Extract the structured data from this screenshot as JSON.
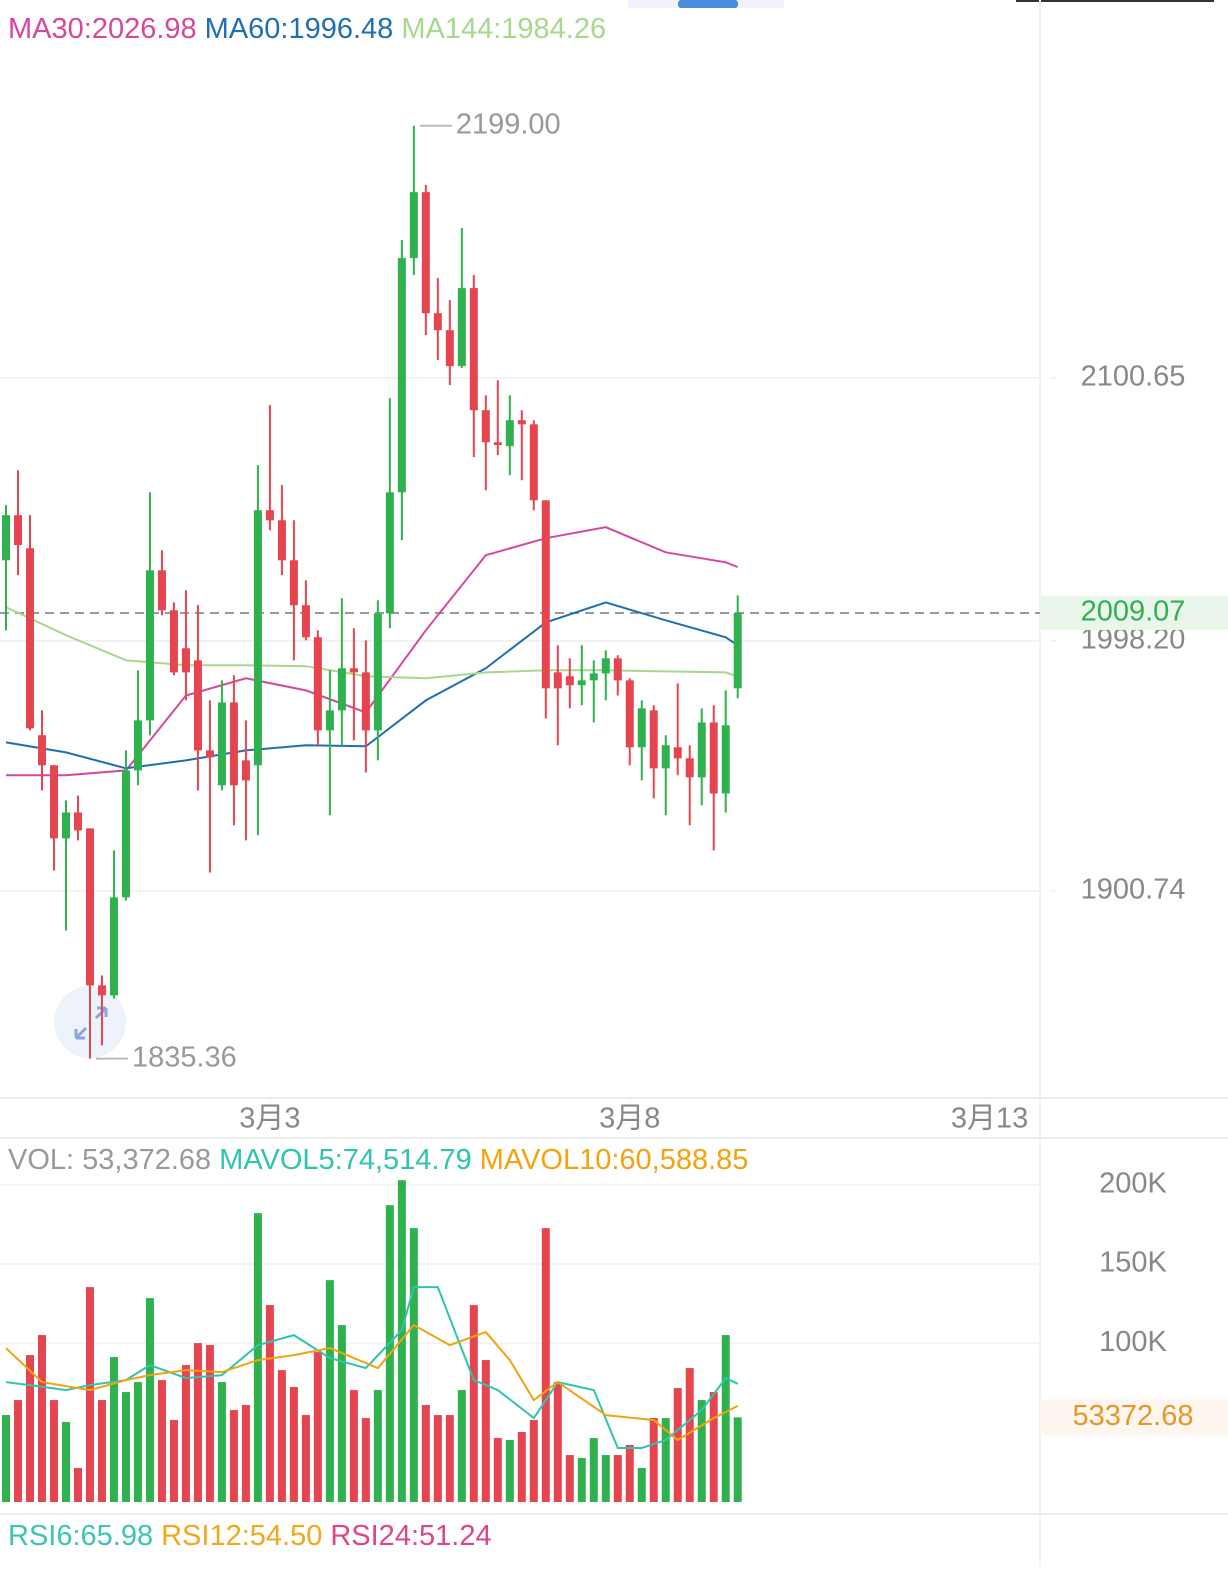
{
  "chart_data": [
    {
      "type": "candlestick",
      "up_color": "#2fb14e",
      "down_color": "#e5454f",
      "open": [
        2029.6,
        2047.2,
        2034.3,
        1961.4,
        1949.7,
        1921.2,
        1931.3,
        1925.1,
        1863.9,
        1860.0,
        1898.2,
        1947.7,
        1967.2,
        2025.7,
        2010.1,
        1995.3,
        1990.6,
        1955.5,
        1941.9,
        1974.2,
        1951.6,
        1949.7,
        2049.1,
        2045.2,
        2029.6,
        2012.1,
        1999.6,
        1963.3,
        1971.1,
        1987.5,
        1985.9,
        1963.3,
        2008.9,
        2056.1,
        2147.4,
        2173.1,
        2125.9,
        2119.3,
        2105.3,
        2135.7,
        2088.1,
        2075.6,
        2074.1,
        2084.2,
        2082.6,
        2053.0,
        1985.9,
        1984.4,
        1980.9,
        1982.8,
        1985.5,
        1991.4,
        1982.8,
        1956.7,
        1971.1,
        1948.5,
        1956.7,
        1952.4,
        1945.0,
        1966.4,
        1938.7,
        1979.7
      ],
      "high": [
        2051.1,
        2064.7,
        2047.2,
        1971.1,
        1949.7,
        1936.0,
        1937.9,
        1925.1,
        1867.8,
        1916.5,
        1955.5,
        1986.7,
        2056.1,
        2033.5,
        2013.2,
        2017.9,
        2012.1,
        1975.0,
        1982.8,
        1984.8,
        1967.2,
        2066.7,
        2090.1,
        2058.9,
        2045.2,
        2021.8,
        2002.3,
        1986.7,
        2014.8,
        2003.1,
        1998.4,
        2014.0,
        2092.8,
        2154.4,
        2199.0,
        2175.9,
        2139.6,
        2131.0,
        2159.1,
        2140.8,
        2093.9,
        2099.8,
        2093.9,
        2088.1,
        2084.2,
        2053.0,
        1996.5,
        1991.4,
        1996.5,
        1990.6,
        1994.5,
        1992.6,
        1983.6,
        1975.0,
        1973.1,
        1961.4,
        1981.6,
        1957.5,
        1971.9,
        1973.1,
        1978.9,
        2015.9
      ],
      "low": [
        2002.3,
        2023.8,
        1963.3,
        1939.9,
        1908.7,
        1885.3,
        1920.4,
        1835.36,
        1840.5,
        1858.8,
        1897.0,
        1941.9,
        1961.4,
        2008.2,
        1984.8,
        1975.0,
        1939.9,
        1907.9,
        1939.9,
        1926.3,
        1920.4,
        1922.4,
        2041.3,
        2023.8,
        1990.6,
        1998.4,
        1957.5,
        1930.2,
        1957.5,
        1959.4,
        1946.9,
        1951.6,
        2003.1,
        2037.4,
        2140.8,
        2117.4,
        2107.6,
        2097.9,
        2104.5,
        2069.8,
        2056.9,
        2070.6,
        2062.8,
        2060.8,
        2049.1,
        1968.0,
        1957.5,
        1971.9,
        1973.1,
        1966.4,
        1975.0,
        1976.9,
        1949.7,
        1943.8,
        1936.8,
        1930.2,
        1945.8,
        1926.3,
        1934.1,
        1916.5,
        1931.3,
        1975.8
      ],
      "close": [
        2047.2,
        2035.5,
        1964.1,
        1949.7,
        1921.2,
        1931.3,
        1924.3,
        1863.9,
        1860.0,
        1898.2,
        1947.7,
        1967.2,
        2025.7,
        2010.1,
        1985.9,
        1985.9,
        1955.5,
        1952.8,
        1974.2,
        1941.9,
        1943.8,
        2049.1,
        2045.2,
        2029.6,
        2012.1,
        1999.6,
        1963.3,
        1971.1,
        1987.5,
        1985.9,
        1963.3,
        2008.9,
        2056.1,
        2147.4,
        2173.1,
        2125.9,
        2119.3,
        2105.3,
        2135.7,
        2088.1,
        2075.6,
        2074.5,
        2084.2,
        2082.6,
        2053.0,
        1979.7,
        1979.7,
        1980.9,
        1982.8,
        1985.5,
        1991.4,
        1982.8,
        1956.7,
        1971.9,
        1948.5,
        1957.5,
        1952.4,
        1945.0,
        1966.4,
        1938.7,
        1965.3,
        2009.07
      ],
      "series": [
        {
          "name": "MA30:2026.98",
          "color": "#d6479f",
          "x": [
            0,
            5,
            10,
            15,
            20,
            25,
            30,
            35,
            40,
            45,
            50,
            55,
            60,
            61
          ],
          "values": [
            1945.8,
            1945.8,
            1947.7,
            1976.9,
            1983.6,
            1978.9,
            1970.3,
            2002.3,
            2031.6,
            2038.2,
            2042.5,
            2032.7,
            2028.8,
            2026.98
          ]
        },
        {
          "name": "MA60:1996.48",
          "color": "#1f6fb2",
          "x": [
            0,
            5,
            10,
            15,
            20,
            25,
            30,
            35,
            40,
            45,
            50,
            55,
            60,
            61
          ],
          "values": [
            1958.6,
            1954.7,
            1948.5,
            1951.6,
            1955.5,
            1957.5,
            1957.1,
            1975.0,
            1987.5,
            2005.4,
            2013.2,
            2006.2,
            1999.6,
            1996.48
          ]
        },
        {
          "name": "MA144:1984.26",
          "color": "#a8d88e",
          "x": [
            0,
            5,
            10,
            15,
            20,
            25,
            30,
            35,
            40,
            45,
            50,
            55,
            60,
            61
          ],
          "values": [
            2011.3,
            2000.4,
            1990.6,
            1988.7,
            1988.7,
            1988.3,
            1984.4,
            1983.6,
            1985.9,
            1986.7,
            1986.7,
            1986.3,
            1985.9,
            1984.26
          ]
        }
      ],
      "max_label": "2199.00",
      "min_label": "1835.36",
      "xlim": [
        -0.5,
        86.2
      ],
      "xticks": [
        {
          "value": 22,
          "label": "3月3"
        },
        {
          "value": 52,
          "label": "3月8"
        },
        {
          "value": 82,
          "label": "3月13"
        }
      ],
      "ylim": [
        1820,
        2248
      ],
      "yticks": [
        2100.65,
        {
          "value": 1998.2,
          "label": "1998.20"
        },
        1900.74
      ],
      "grid": true
    },
    {
      "type": "volume",
      "header": "VOL: 53,372.68",
      "values": [
        54810,
        64260,
        92610,
        105210,
        64260,
        50400,
        21420,
        135450,
        64260,
        91350,
        69300,
        75600,
        128520,
        76860,
        51660,
        86310,
        100170,
        98910,
        75600,
        57960,
        61110,
        182070,
        124110,
        83160,
        72450,
        54810,
        94500,
        139860,
        111510,
        70560,
        52920,
        70560,
        187110,
        202860,
        172620,
        61110,
        54810,
        54810,
        70560,
        124110,
        89460,
        40320,
        39060,
        44100,
        51660,
        172620,
        75600,
        29610,
        27720,
        40320,
        29610,
        29610,
        35910,
        21420,
        52920,
        52920,
        71820,
        84420,
        64260,
        69300,
        105210,
        53372.68
      ],
      "series": [
        {
          "name": "MAVOL5:74,514.79",
          "color": "#2ec4b0",
          "x": [
            0,
            2,
            5,
            7,
            10,
            12,
            15,
            18,
            21,
            24,
            27,
            30,
            33,
            34,
            36,
            39,
            41,
            44,
            46,
            49,
            51,
            53,
            55,
            58,
            60,
            61
          ],
          "values": [
            75600,
            73710,
            70560,
            73710,
            76860,
            86310,
            78120,
            80010,
            98910,
            105210,
            90720,
            84420,
            108360,
            135450,
            135450,
            76860,
            70560,
            52920,
            75600,
            70560,
            34020,
            34020,
            39060,
            57960,
            78120,
            74514.79
          ]
        },
        {
          "name": "MAVOL10:60,588.85",
          "color": "#f2a30f",
          "x": [
            0,
            3,
            7,
            10,
            12,
            15,
            18,
            21,
            24,
            27,
            31,
            34,
            37,
            40,
            42,
            44,
            46,
            50,
            54,
            56,
            59,
            61
          ],
          "values": [
            97020,
            75600,
            70560,
            76860,
            80010,
            83160,
            81900,
            89460,
            92610,
            97020,
            84420,
            111510,
            98910,
            107100,
            89460,
            64260,
            75600,
            54810,
            51660,
            39060,
            52920,
            60588.85
          ]
        }
      ],
      "ylim": [
        0,
        228200
      ],
      "yticks": [
        {
          "value": 200000,
          "label": "200K"
        },
        {
          "value": 150000,
          "label": "150K"
        },
        {
          "value": 100000,
          "label": "100K"
        }
      ],
      "grid": true
    }
  ],
  "rsi_legend": [
    {
      "text": "RSI6:65.98",
      "color": "#3cc4b4"
    },
    {
      "text": "RSI12:54.50",
      "color": "#f0a81c"
    },
    {
      "text": "RSI24:51.24",
      "color": "#e0458c"
    }
  ]
}
